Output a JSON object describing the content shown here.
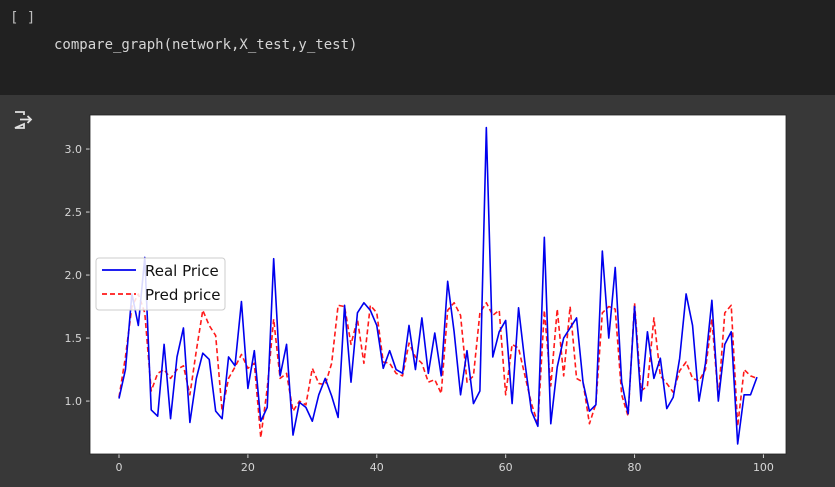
{
  "cell": {
    "prompt": "[ ]",
    "code": "compare_graph(network,X_test,y_test)"
  },
  "output": {
    "icon": "output-redirect-icon"
  },
  "colors": {
    "real": "#0000ee",
    "pred": "#ff1a1a",
    "plot_bg": "#ffffff",
    "page_bg": "#383838"
  },
  "chart_data": {
    "type": "line",
    "xlim": [
      -4.5,
      103.5
    ],
    "ylim": [
      0.58,
      3.27
    ],
    "xticks": [
      0,
      20,
      40,
      60,
      80,
      100
    ],
    "yticks": [
      1.0,
      1.5,
      2.0,
      2.5,
      3.0
    ],
    "xtick_labels": [
      "0",
      "20",
      "40",
      "60",
      "80",
      "100"
    ],
    "ytick_labels": [
      "1.0",
      "1.5",
      "2.0",
      "2.5",
      "3.0"
    ],
    "legend": {
      "position": "center-left",
      "entries": [
        "Real Price",
        "Pred price"
      ]
    },
    "series": [
      {
        "name": "Real Price",
        "style": "solid",
        "values": [
          1.02,
          1.25,
          1.85,
          1.6,
          2.14,
          0.93,
          0.88,
          1.45,
          0.86,
          1.35,
          1.58,
          0.83,
          1.18,
          1.38,
          1.33,
          0.92,
          0.86,
          1.35,
          1.28,
          1.79,
          1.1,
          1.4,
          0.84,
          0.95,
          2.13,
          1.2,
          1.45,
          0.73,
          0.99,
          0.95,
          0.84,
          1.05,
          1.18,
          1.04,
          0.87,
          1.76,
          1.15,
          1.7,
          1.78,
          1.72,
          1.6,
          1.26,
          1.4,
          1.25,
          1.22,
          1.6,
          1.25,
          1.66,
          1.22,
          1.54,
          1.2,
          1.95,
          1.55,
          1.05,
          1.4,
          0.98,
          1.08,
          3.17,
          1.35,
          1.55,
          1.64,
          0.98,
          1.74,
          1.3,
          0.92,
          0.8,
          2.3,
          0.82,
          1.27,
          1.5,
          1.58,
          1.66,
          1.15,
          0.92,
          0.97,
          2.19,
          1.5,
          2.06,
          1.15,
          0.9,
          1.75,
          1.0,
          1.55,
          1.18,
          1.34,
          0.94,
          1.03,
          1.34,
          1.85,
          1.6,
          1.0,
          1.3,
          1.8,
          1.0,
          1.45,
          1.55,
          0.66,
          1.05,
          1.05,
          1.19
        ]
      },
      {
        "name": "Pred price",
        "style": "dashed",
        "values": [
          1.03,
          1.35,
          1.75,
          1.85,
          1.7,
          1.08,
          1.22,
          1.25,
          1.18,
          1.25,
          1.28,
          1.05,
          1.4,
          1.72,
          1.6,
          1.52,
          0.92,
          1.18,
          1.27,
          1.37,
          1.26,
          1.3,
          0.71,
          1.1,
          1.65,
          1.18,
          1.22,
          0.92,
          1.0,
          0.97,
          1.26,
          1.14,
          1.13,
          1.3,
          1.76,
          1.75,
          1.45,
          1.65,
          1.3,
          1.76,
          1.7,
          1.31,
          1.3,
          1.22,
          1.2,
          1.46,
          1.35,
          1.3,
          1.15,
          1.17,
          1.06,
          1.72,
          1.78,
          1.68,
          1.15,
          1.2,
          1.7,
          1.78,
          1.68,
          1.72,
          1.05,
          1.45,
          1.42,
          1.2,
          0.98,
          0.82,
          1.72,
          1.12,
          1.73,
          1.2,
          1.75,
          1.18,
          1.15,
          0.82,
          0.98,
          1.7,
          1.75,
          1.73,
          1.05,
          0.88,
          1.78,
          1.08,
          1.12,
          1.66,
          1.2,
          1.14,
          1.07,
          1.24,
          1.31,
          1.18,
          1.16,
          1.25,
          1.65,
          1.02,
          1.7,
          1.76,
          0.8,
          1.25,
          1.2,
          1.18
        ]
      }
    ]
  }
}
